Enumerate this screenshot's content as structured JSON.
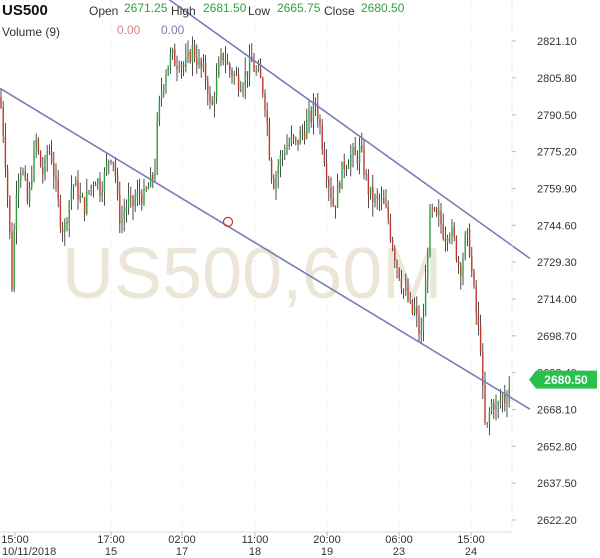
{
  "header": {
    "symbol": "US500",
    "open_label": "Open",
    "open_value": "2671.25",
    "high_label": "High",
    "high_value": "2681.50",
    "low_label": "Low",
    "low_value": "2665.75",
    "close_label": "Close",
    "close_value": "2680.50",
    "volume_label": "Volume (9)",
    "volume_value_1": "0.00",
    "volume_value_2": "0.00"
  },
  "watermark": "US500,60M",
  "last_price": "2680.50",
  "colors": {
    "up": "#2e9e3e",
    "down": "#c0392b",
    "channel": "#7b7bb8",
    "badge": "#27c24c",
    "watermark": "#ece6d8",
    "value_green": "#2ea043",
    "value_red": "#e08080",
    "value_purple": "#7a7ab8"
  },
  "chart_data": {
    "type": "candlestick",
    "y_ticks": [
      "2821.10",
      "2805.80",
      "2790.50",
      "2775.20",
      "2759.90",
      "2744.60",
      "2729.30",
      "2714.00",
      "2698.70",
      "2683.40",
      "2668.10",
      "2652.80",
      "2637.50",
      "2622.20"
    ],
    "x_ticks": [
      {
        "time": "15:00",
        "date": "10/11/2018"
      },
      {
        "time": "17:00",
        "date": "15"
      },
      {
        "time": "02:00",
        "date": "17"
      },
      {
        "time": "11:00",
        "date": "18"
      },
      {
        "time": "20:00",
        "date": "19"
      },
      {
        "time": "06:00",
        "date": "23"
      },
      {
        "time": "15:00",
        "date": "24"
      }
    ],
    "ylim": [
      2617,
      2836
    ],
    "trend_upper": [
      [
        2853.0,
        2730.8
      ]
    ],
    "trend_lower": [
      [
        2801.5,
        2668.2
      ]
    ],
    "marker": 2746,
    "path": [
      [
        0,
        2798
      ],
      [
        3,
        2785
      ],
      [
        6,
        2768
      ],
      [
        9,
        2748
      ],
      [
        12,
        2720
      ],
      [
        16,
        2760
      ],
      [
        20,
        2770
      ],
      [
        24,
        2764
      ],
      [
        28,
        2752
      ],
      [
        32,
        2768
      ],
      [
        36,
        2780
      ],
      [
        40,
        2770
      ],
      [
        44,
        2765
      ],
      [
        48,
        2778
      ],
      [
        52,
        2772
      ],
      [
        56,
        2760
      ],
      [
        60,
        2748
      ],
      [
        64,
        2742
      ],
      [
        68,
        2752
      ],
      [
        72,
        2762
      ],
      [
        76,
        2760
      ],
      [
        80,
        2756
      ],
      [
        84,
        2752
      ],
      [
        88,
        2758
      ],
      [
        92,
        2762
      ],
      [
        96,
        2765
      ],
      [
        100,
        2760
      ],
      [
        104,
        2764
      ],
      [
        108,
        2772
      ],
      [
        112,
        2775
      ],
      [
        115,
        2768
      ],
      [
        118,
        2752
      ],
      [
        121,
        2746
      ],
      [
        124,
        2750
      ],
      [
        128,
        2755
      ],
      [
        132,
        2752
      ],
      [
        136,
        2756
      ],
      [
        140,
        2758
      ],
      [
        144,
        2756
      ],
      [
        148,
        2760
      ],
      [
        152,
        2763
      ],
      [
        155,
        2770
      ],
      [
        158,
        2790
      ],
      [
        161,
        2800
      ],
      [
        164,
        2806
      ],
      [
        168,
        2812
      ],
      [
        172,
        2815
      ],
      [
        176,
        2812
      ],
      [
        180,
        2814
      ],
      [
        184,
        2810
      ],
      [
        188,
        2813
      ],
      [
        192,
        2818
      ],
      [
        196,
        2815
      ],
      [
        200,
        2810
      ],
      [
        204,
        2808
      ],
      [
        208,
        2802
      ],
      [
        211,
        2790
      ],
      [
        214,
        2800
      ],
      [
        217,
        2805
      ],
      [
        220,
        2812
      ],
      [
        224,
        2816
      ],
      [
        228,
        2810
      ],
      [
        232,
        2808
      ],
      [
        236,
        2806
      ],
      [
        240,
        2804
      ],
      [
        244,
        2806
      ],
      [
        248,
        2810
      ],
      [
        252,
        2812
      ],
      [
        256,
        2808
      ],
      [
        260,
        2805
      ],
      [
        264,
        2800
      ],
      [
        267,
        2788
      ],
      [
        270,
        2772
      ],
      [
        273,
        2762
      ],
      [
        276,
        2766
      ],
      [
        280,
        2772
      ],
      [
        284,
        2776
      ],
      [
        288,
        2778
      ],
      [
        292,
        2780
      ],
      [
        296,
        2778
      ],
      [
        300,
        2782
      ],
      [
        304,
        2784
      ],
      [
        308,
        2788
      ],
      [
        312,
        2790
      ],
      [
        316,
        2796
      ],
      [
        319,
        2788
      ],
      [
        322,
        2780
      ],
      [
        325,
        2772
      ],
      [
        328,
        2764
      ],
      [
        331,
        2758
      ],
      [
        334,
        2752
      ],
      [
        337,
        2758
      ],
      [
        340,
        2764
      ],
      [
        344,
        2770
      ],
      [
        348,
        2772
      ],
      [
        352,
        2774
      ],
      [
        356,
        2772
      ],
      [
        360,
        2776
      ],
      [
        363,
        2770
      ],
      [
        366,
        2764
      ],
      [
        369,
        2758
      ],
      [
        372,
        2756
      ],
      [
        376,
        2754
      ],
      [
        380,
        2755
      ],
      [
        384,
        2752
      ],
      [
        388,
        2748
      ],
      [
        391,
        2740
      ],
      [
        394,
        2734
      ],
      [
        397,
        2728
      ],
      [
        400,
        2724
      ],
      [
        403,
        2718
      ],
      [
        406,
        2716
      ],
      [
        409,
        2712
      ],
      [
        412,
        2708
      ],
      [
        415,
        2710
      ],
      [
        418,
        2702
      ],
      [
        421,
        2698
      ],
      [
        424,
        2710
      ],
      [
        427,
        2730
      ],
      [
        430,
        2748
      ],
      [
        433,
        2750
      ],
      [
        436,
        2746
      ],
      [
        439,
        2748
      ],
      [
        442,
        2744
      ],
      [
        445,
        2740
      ],
      [
        448,
        2744
      ],
      [
        451,
        2742
      ],
      [
        454,
        2738
      ],
      [
        457,
        2732
      ],
      [
        460,
        2726
      ],
      [
        463,
        2732
      ],
      [
        466,
        2740
      ],
      [
        469,
        2738
      ],
      [
        472,
        2724
      ],
      [
        475,
        2712
      ],
      [
        478,
        2702
      ],
      [
        481,
        2694
      ],
      [
        484,
        2662
      ],
      [
        487,
        2660
      ],
      [
        490,
        2668
      ],
      [
        493,
        2672
      ],
      [
        496,
        2668
      ],
      [
        499,
        2670
      ],
      [
        502,
        2674
      ],
      [
        505,
        2672
      ],
      [
        508,
        2676
      ],
      [
        511,
        2680.5
      ]
    ]
  }
}
